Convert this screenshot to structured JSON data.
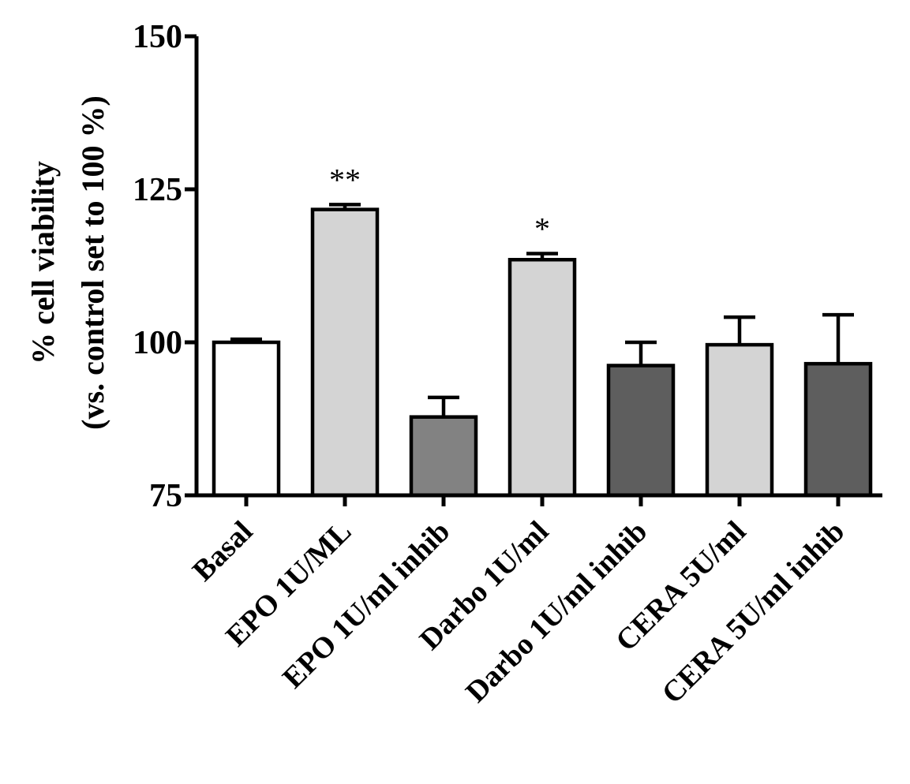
{
  "chart_data": {
    "type": "bar",
    "ylabel_line1": "% cell viability",
    "ylabel_line2": "(vs. control set to  100 %)",
    "ylim": [
      75,
      150
    ],
    "yticks": [
      75,
      100,
      125,
      150
    ],
    "grid": false,
    "categories": [
      "Basal",
      "EPO 1U/ML",
      "EPO 1U/ml inhib",
      "Darbo 1U/ml",
      "Darbo 1U/ml inhib",
      "CERA 5U/ml",
      "CERA 5U/ml inhib"
    ],
    "values": [
      100,
      121.7,
      87.8,
      113.5,
      96.2,
      99.6,
      96.5
    ],
    "errors": [
      0.5,
      0.8,
      3.2,
      1.0,
      3.8,
      4.5,
      8.0
    ],
    "annotations": [
      "",
      "**",
      "",
      "*",
      "",
      "",
      ""
    ],
    "colors": [
      "#ffffff",
      "#d4d4d4",
      "#828282",
      "#d4d4d4",
      "#5e5e5e",
      "#d4d4d4",
      "#5e5e5e"
    ]
  }
}
